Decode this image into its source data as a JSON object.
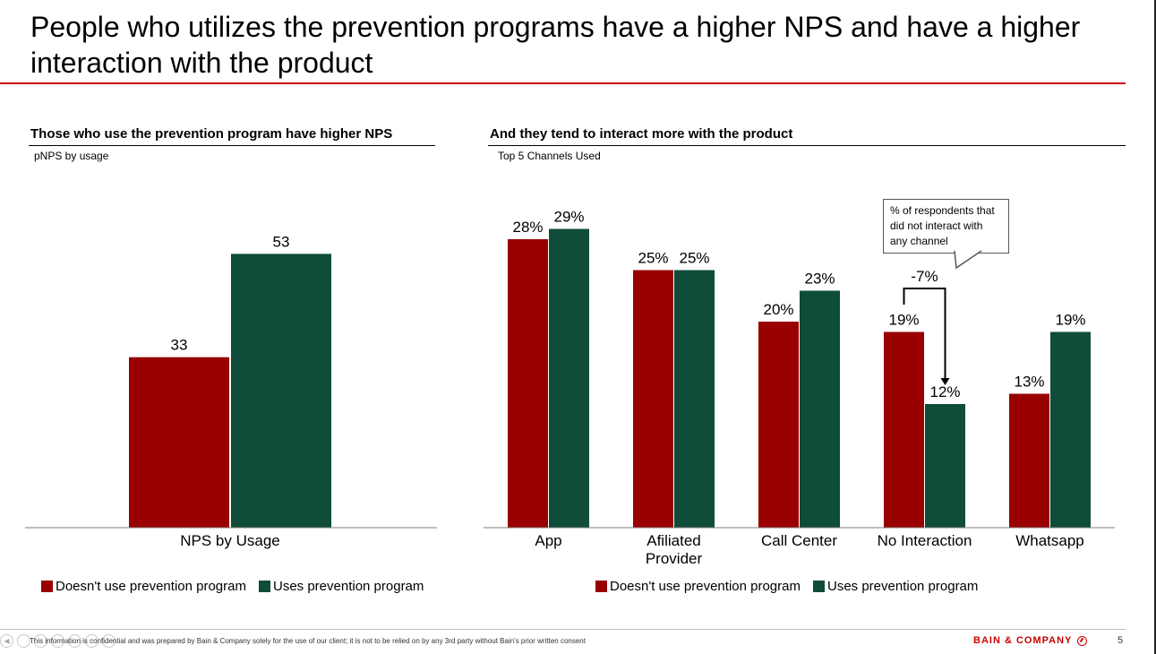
{
  "slide": {
    "title": "People who utilizes the prevention programs have a higher NPS and have a higher interaction with the product",
    "footer_text": "This information is confidential and was prepared by Bain & Company solely for the use of our client; it is not to be relied on by any 3rd party without Bain's prior written consent",
    "brand": "BAIN & COMPANY",
    "page_number": "5"
  },
  "colors": {
    "accent_red": "#cc0000",
    "series_red": "#990000",
    "series_green": "#0f4c3a"
  },
  "left_panel": {
    "title": "Those who use the prevention program have higher NPS",
    "subtitle": "pNPS by usage",
    "legend": [
      "Doesn't use prevention program",
      "Uses prevention program"
    ]
  },
  "right_panel": {
    "title": "And they tend to interact more with the product",
    "subtitle": "Top 5 Channels Used",
    "legend": [
      "Doesn't use prevention program",
      "Uses prevention program"
    ],
    "callout": "% of respondents that did not interact with any channel",
    "delta_label": "-7%"
  },
  "chart_data": [
    {
      "type": "bar",
      "title": "Those who use the prevention program have higher NPS",
      "subtitle": "pNPS by usage",
      "categories": [
        "NPS by Usage"
      ],
      "series": [
        {
          "name": "Doesn't use prevention program",
          "values": [
            33
          ],
          "labels": [
            "33"
          ],
          "color": "#990000"
        },
        {
          "name": "Uses prevention program",
          "values": [
            53
          ],
          "labels": [
            "53"
          ],
          "color": "#0f4c3a"
        }
      ],
      "ylim": [
        0,
        60
      ],
      "grid": false,
      "legend_position": "bottom"
    },
    {
      "type": "bar",
      "title": "And they tend to interact more with the product",
      "subtitle": "Top 5 Channels Used",
      "categories": [
        "App",
        "Afiliated Provider",
        "Call Center",
        "No Interaction",
        "Whatsapp"
      ],
      "category_lines": [
        [
          "App"
        ],
        [
          "Afiliated",
          "Provider"
        ],
        [
          "Call Center"
        ],
        [
          "No Interaction"
        ],
        [
          "Whatsapp"
        ]
      ],
      "series": [
        {
          "name": "Doesn't use prevention program",
          "values": [
            28,
            25,
            20,
            19,
            13
          ],
          "labels": [
            "28%",
            "25%",
            "20%",
            "19%",
            "13%"
          ],
          "color": "#990000"
        },
        {
          "name": "Uses prevention program",
          "values": [
            29,
            25,
            23,
            12,
            19
          ],
          "labels": [
            "29%",
            "25%",
            "23%",
            "12%",
            "19%"
          ],
          "color": "#0f4c3a"
        }
      ],
      "ylim": [
        0,
        32
      ],
      "unit": "%",
      "grid": false,
      "legend_position": "bottom"
    }
  ]
}
